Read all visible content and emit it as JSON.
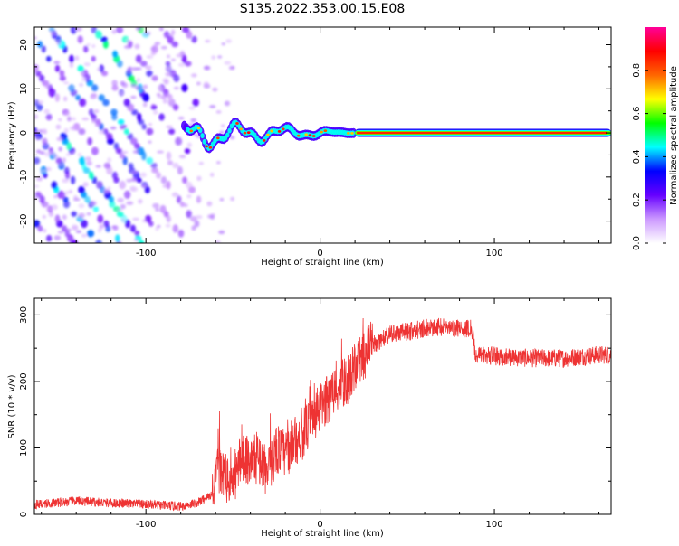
{
  "page": {
    "title": "S135.2022.353.00.15.E08"
  },
  "chart_data": [
    {
      "type": "heatmap",
      "title": "S135.2022.353.00.15.E08",
      "xlabel": "Height of straight line (km)",
      "ylabel": "Frequency (Hz)",
      "xlim": [
        -164,
        167
      ],
      "ylim": [
        -25,
        24
      ],
      "x_ticks": [
        -100,
        0,
        100
      ],
      "x_tick_labels": [
        "-100",
        "0",
        "100"
      ],
      "y_ticks": [
        -20,
        -10,
        0,
        10,
        20
      ],
      "y_tick_labels": [
        "-20",
        "-10",
        "0",
        "10",
        "20"
      ],
      "colorbar": {
        "label": "Normalized spectral amplitude",
        "range": [
          0,
          1
        ],
        "ticks": [
          0,
          0.2,
          0.4,
          0.6,
          0.8
        ],
        "tick_labels": [
          "0.0",
          "0.2",
          "0.4",
          "0.6",
          "0.8"
        ],
        "colormap": [
          "#ffffff",
          "#cc99ff",
          "#6600ff",
          "#0000ff",
          "#00ffff",
          "#00ff00",
          "#ffff00",
          "#ff6600",
          "#ff0000",
          "#ff0099"
        ]
      },
      "features": {
        "carrier_line": {
          "frequency_hz": 0,
          "x_start": 20,
          "x_end": 167,
          "amplitude": 0.85
        },
        "diagonal_stripes_region": {
          "x_start": -164,
          "x_end": -75,
          "amplitude": 0.3
        }
      },
      "grid": false
    },
    {
      "type": "line",
      "xlabel": "Height of straight line (km)",
      "ylabel": "SNR (10 * v/v)",
      "xlim": [
        -164,
        167
      ],
      "ylim": [
        0,
        325
      ],
      "x_ticks": [
        -100,
        0,
        100
      ],
      "x_tick_labels": [
        "-100",
        "0",
        "100"
      ],
      "y_ticks": [
        0,
        100,
        200,
        300
      ],
      "y_tick_labels": [
        "0",
        "100",
        "200",
        "300"
      ],
      "series": [
        {
          "color": "#ee3333",
          "x": [
            -164,
            -140,
            -120,
            -100,
            -80,
            -70,
            -62,
            -58,
            -55,
            -50,
            -45,
            -40,
            -35,
            -30,
            -25,
            -20,
            -15,
            -10,
            -5,
            0,
            5,
            10,
            15,
            20,
            25,
            30,
            40,
            50,
            60,
            70,
            80,
            87,
            89,
            100,
            120,
            140,
            160,
            167
          ],
          "y": [
            15,
            20,
            17,
            15,
            12,
            18,
            30,
            70,
            55,
            45,
            90,
            80,
            85,
            60,
            100,
            90,
            110,
            120,
            140,
            160,
            175,
            190,
            200,
            220,
            240,
            255,
            270,
            275,
            280,
            282,
            280,
            280,
            240,
            238,
            235,
            235,
            240,
            240
          ]
        }
      ],
      "grid": false
    }
  ]
}
